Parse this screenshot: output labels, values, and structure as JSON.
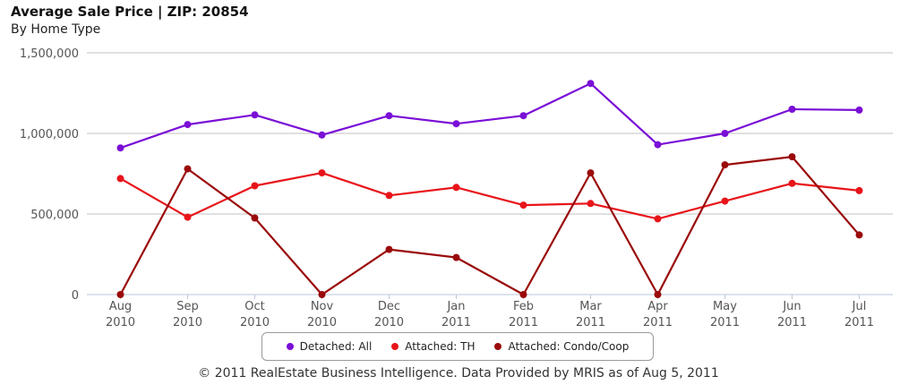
{
  "title": "Average Sale Price | ZIP: 20854",
  "subtitle": "By Home Type",
  "footer": "© 2011 RealEstate Business Intelligence. Data Provided by MRIS as of Aug 5, 2011",
  "chart_data": {
    "type": "line",
    "title": "Average Sale Price | ZIP: 20854",
    "subtitle": "By Home Type",
    "categories": [
      [
        "Aug",
        "2010"
      ],
      [
        "Sep",
        "2010"
      ],
      [
        "Oct",
        "2010"
      ],
      [
        "Nov",
        "2010"
      ],
      [
        "Dec",
        "2010"
      ],
      [
        "Jan",
        "2011"
      ],
      [
        "Feb",
        "2011"
      ],
      [
        "Mar",
        "2011"
      ],
      [
        "Apr",
        "2011"
      ],
      [
        "May",
        "2011"
      ],
      [
        "Jun",
        "2011"
      ],
      [
        "Jul",
        "2011"
      ]
    ],
    "ylim": [
      0,
      1500000
    ],
    "yticks": [
      0,
      500000,
      1000000,
      1500000
    ],
    "ytick_labels": [
      "0",
      "500,000",
      "1,000,000",
      "1,500,000"
    ],
    "grid": true,
    "legend_position": "bottom-center",
    "series": [
      {
        "name": "Detached: All",
        "color": "#7a0fd6",
        "values": [
          910000,
          1055000,
          1115000,
          990000,
          1110000,
          1060000,
          1110000,
          1310000,
          930000,
          1000000,
          1150000,
          1145000
        ]
      },
      {
        "name": "Attached: TH",
        "color": "#e8141a",
        "values": [
          720000,
          480000,
          675000,
          755000,
          615000,
          665000,
          555000,
          565000,
          470000,
          580000,
          690000,
          645000
        ]
      },
      {
        "name": "Attached: Condo/Coop",
        "color": "#9a0a0a",
        "values": [
          0,
          780000,
          475000,
          0,
          280000,
          230000,
          0,
          755000,
          0,
          805000,
          855000,
          370000
        ]
      }
    ]
  }
}
